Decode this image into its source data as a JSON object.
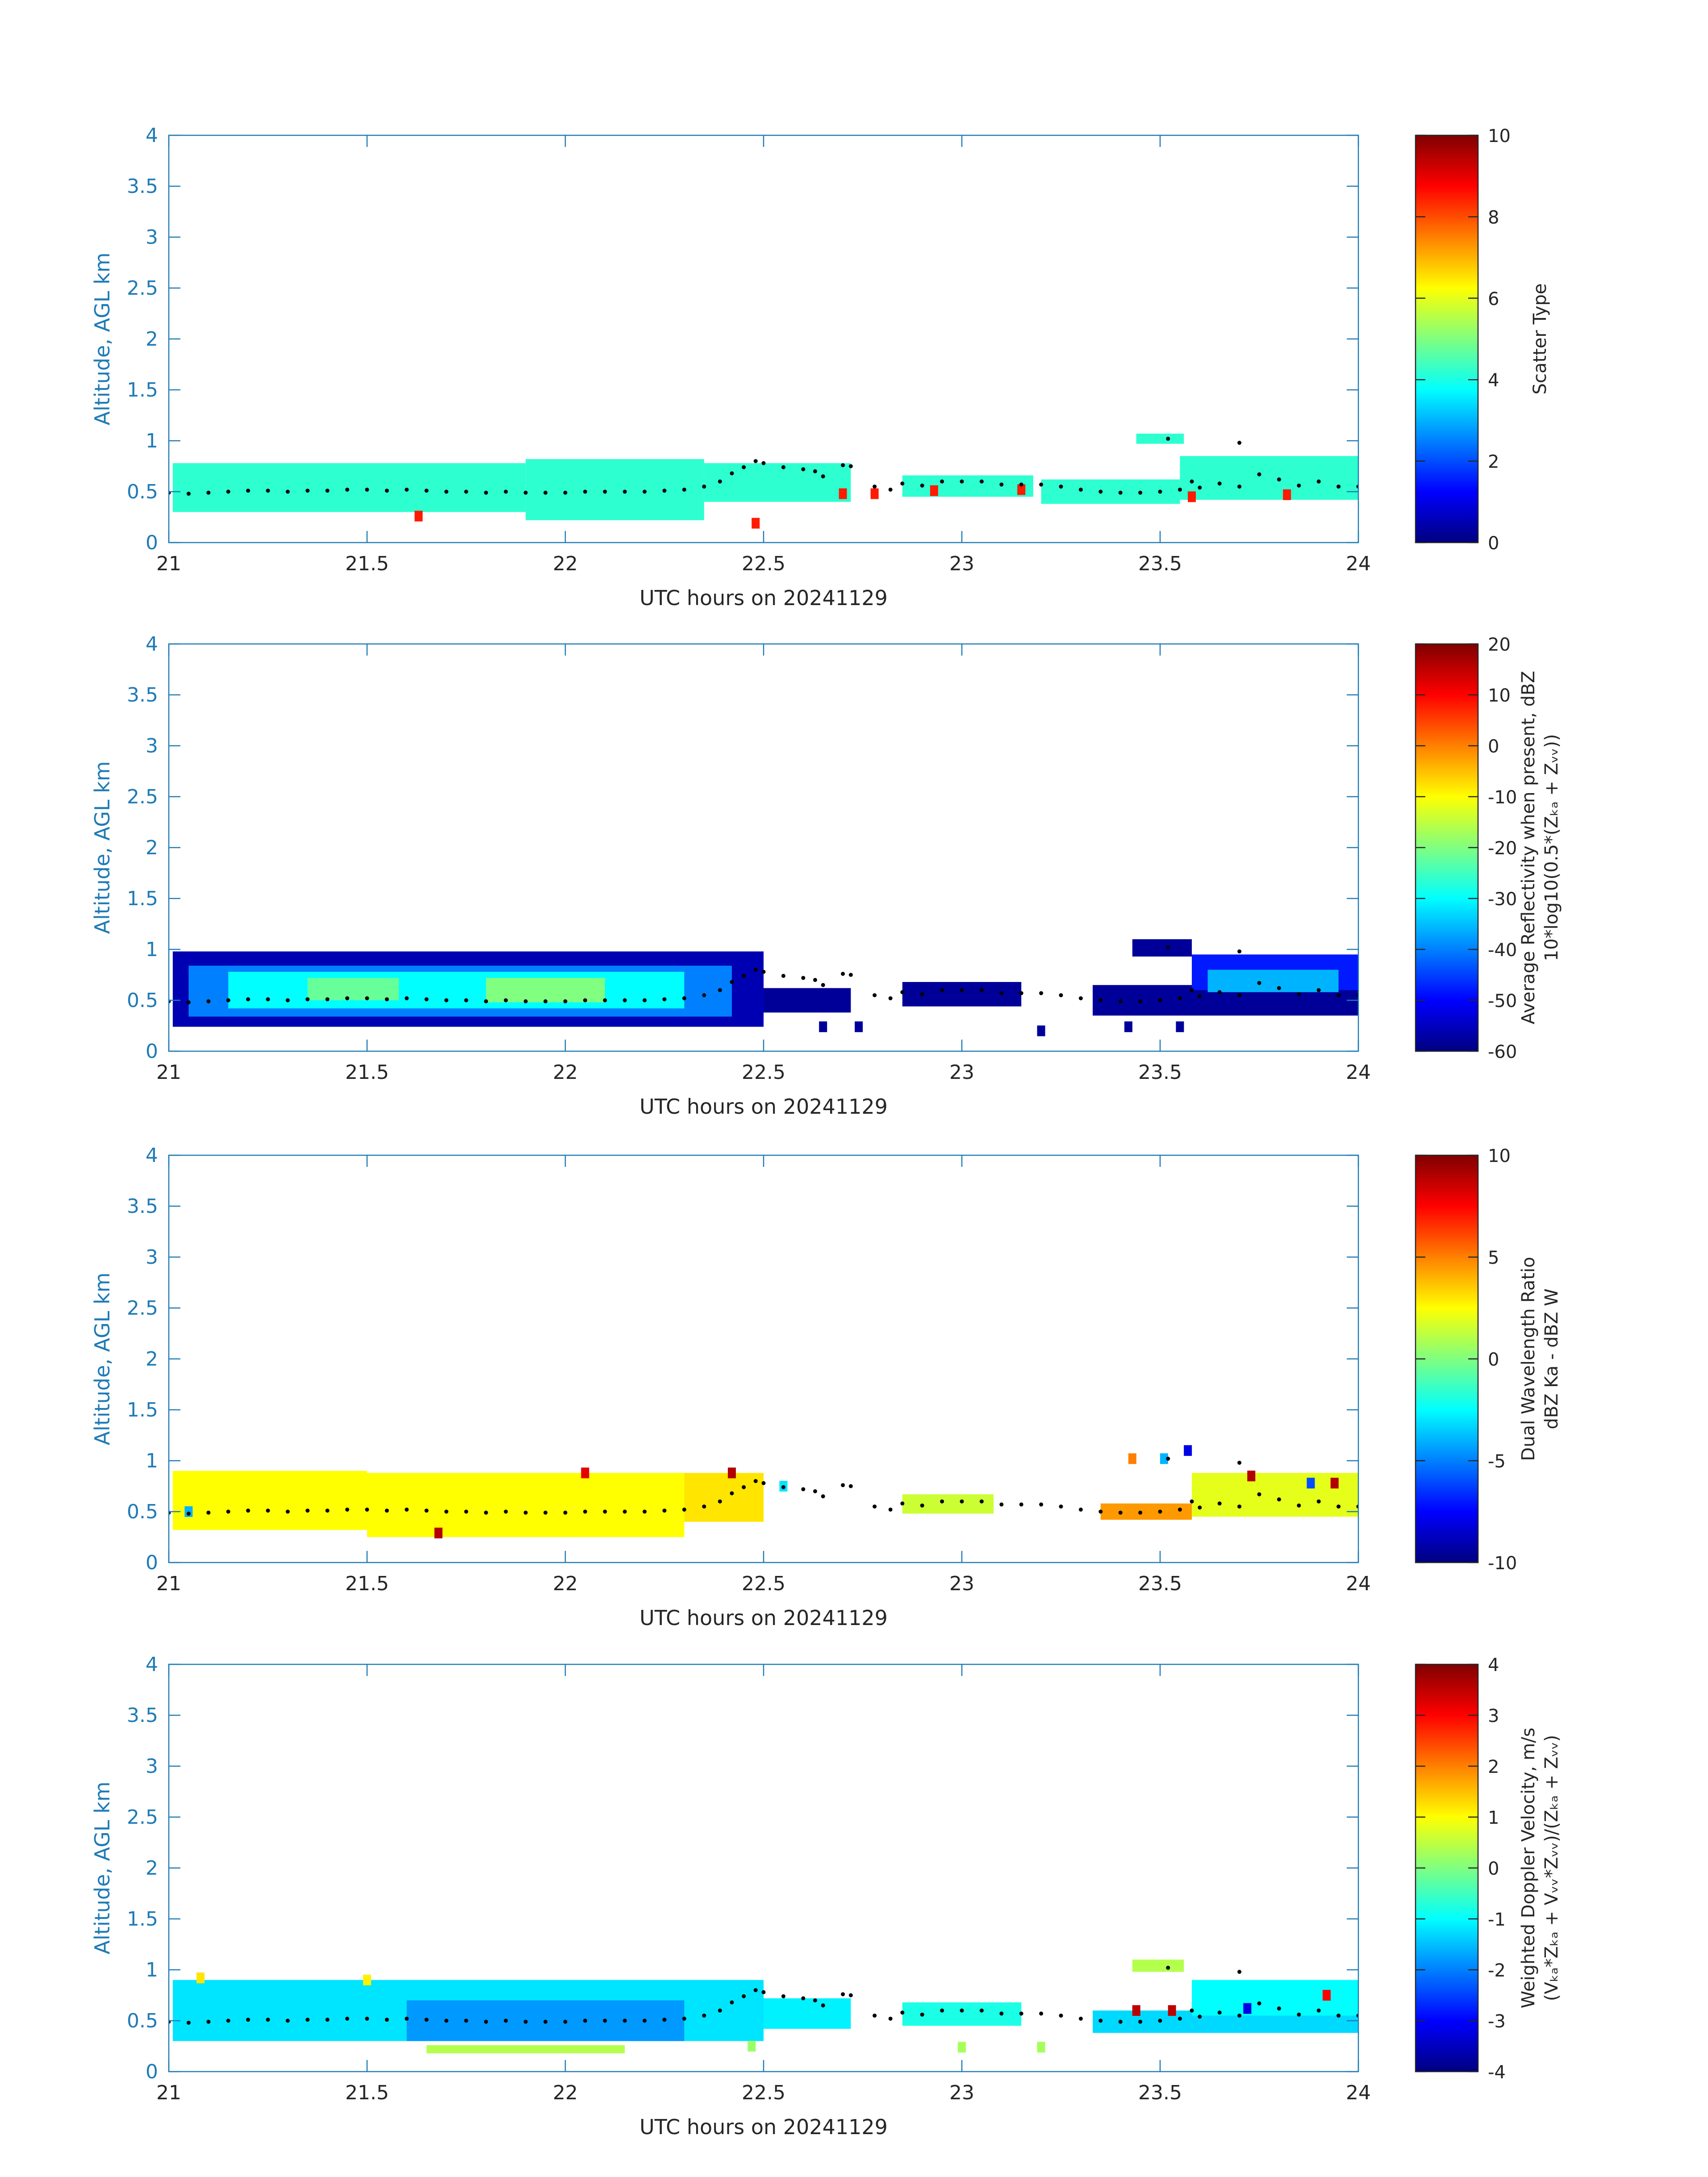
{
  "colors": {
    "axis": "#1f7bb6",
    "text": "#262626",
    "dots": "#000000"
  },
  "chart_data": [
    {
      "type": "heatmap",
      "panel": "scatter-type",
      "xlabel": "UTC hours on 20241129",
      "ylabel": "Altitude, AGL km",
      "xlim": [
        21,
        24
      ],
      "ylim": [
        0,
        4
      ],
      "xticks": [
        21,
        21.5,
        22,
        22.5,
        23,
        23.5,
        24
      ],
      "yticks": [
        0,
        0.5,
        1,
        1.5,
        2,
        2.5,
        3,
        3.5,
        4
      ],
      "colorbar": {
        "label": [
          "Scatter Type"
        ],
        "clim": [
          0,
          10
        ],
        "ticks": [
          0,
          2,
          4,
          6,
          8,
          10
        ]
      },
      "regions": [
        {
          "x": [
            21.01,
            21.9
          ],
          "y": [
            0.3,
            0.78
          ],
          "value": 4.2
        },
        {
          "x": [
            21.9,
            22.35
          ],
          "y": [
            0.22,
            0.82
          ],
          "value": 4.2
        },
        {
          "x": [
            22.35,
            22.72
          ],
          "y": [
            0.4,
            0.78
          ],
          "value": 4.2
        },
        {
          "x": [
            22.85,
            23.18
          ],
          "y": [
            0.45,
            0.66
          ],
          "value": 4.2
        },
        {
          "x": [
            23.2,
            23.55
          ],
          "y": [
            0.38,
            0.62
          ],
          "value": 4.2
        },
        {
          "x": [
            23.55,
            24.0
          ],
          "y": [
            0.42,
            0.85
          ],
          "value": 4.2
        },
        {
          "x": [
            23.44,
            23.56
          ],
          "y": [
            0.97,
            1.07
          ],
          "value": 4.2
        }
      ],
      "spots": [
        {
          "x": 21.63,
          "y": 0.26,
          "value": 8.5
        },
        {
          "x": 22.48,
          "y": 0.19,
          "value": 8.5
        },
        {
          "x": 22.7,
          "y": 0.48,
          "value": 8.5
        },
        {
          "x": 22.78,
          "y": 0.48,
          "value": 8.5
        },
        {
          "x": 22.93,
          "y": 0.51,
          "value": 8.5
        },
        {
          "x": 23.15,
          "y": 0.52,
          "value": 8.5
        },
        {
          "x": 23.82,
          "y": 0.47,
          "value": 8.5
        },
        {
          "x": 23.58,
          "y": 0.45,
          "value": 8.5
        }
      ]
    },
    {
      "type": "heatmap",
      "panel": "reflectivity",
      "xlabel": "UTC hours on 20241129",
      "ylabel": "Altitude, AGL km",
      "xlim": [
        21,
        24
      ],
      "ylim": [
        0,
        4
      ],
      "xticks": [
        21,
        21.5,
        22,
        22.5,
        23,
        23.5,
        24
      ],
      "yticks": [
        0,
        0.5,
        1,
        1.5,
        2,
        2.5,
        3,
        3.5,
        4
      ],
      "colorbar": {
        "label": [
          "Average Reflectivity when present, dBZ",
          "10*log10(0.5*(Zₖₐ + Zᵥᵥ))"
        ],
        "clim": [
          -60,
          20
        ],
        "ticks": [
          -60,
          -50,
          -40,
          -30,
          -20,
          -10,
          0,
          10,
          20
        ]
      },
      "regions": [
        {
          "x": [
            21.01,
            22.5
          ],
          "y": [
            0.24,
            0.98
          ],
          "value": -56
        },
        {
          "x": [
            21.05,
            22.42
          ],
          "y": [
            0.34,
            0.84
          ],
          "value": -40
        },
        {
          "x": [
            21.15,
            22.3
          ],
          "y": [
            0.42,
            0.78
          ],
          "value": -30
        },
        {
          "x": [
            21.35,
            21.58
          ],
          "y": [
            0.5,
            0.72
          ],
          "value": -22
        },
        {
          "x": [
            21.8,
            22.1
          ],
          "y": [
            0.48,
            0.72
          ],
          "value": -20
        },
        {
          "x": [
            22.5,
            22.72
          ],
          "y": [
            0.38,
            0.62
          ],
          "value": -58
        },
        {
          "x": [
            22.85,
            23.15
          ],
          "y": [
            0.44,
            0.68
          ],
          "value": -58
        },
        {
          "x": [
            23.33,
            24.0
          ],
          "y": [
            0.35,
            0.65
          ],
          "value": -58
        },
        {
          "x": [
            23.58,
            24.0
          ],
          "y": [
            0.6,
            0.95
          ],
          "value": -48
        },
        {
          "x": [
            23.62,
            23.95
          ],
          "y": [
            0.58,
            0.8
          ],
          "value": -36
        },
        {
          "x": [
            23.43,
            23.58
          ],
          "y": [
            0.93,
            1.1
          ],
          "value": -58
        }
      ],
      "spots": [
        {
          "x": 22.65,
          "y": 0.24,
          "value": -58
        },
        {
          "x": 22.74,
          "y": 0.24,
          "value": -58
        },
        {
          "x": 23.2,
          "y": 0.2,
          "value": -58
        },
        {
          "x": 23.42,
          "y": 0.24,
          "value": -58
        },
        {
          "x": 23.55,
          "y": 0.24,
          "value": -58
        }
      ]
    },
    {
      "type": "heatmap",
      "panel": "dual-wavelength-ratio",
      "xlabel": "UTC hours on 20241129",
      "ylabel": "Altitude, AGL km",
      "xlim": [
        21,
        24
      ],
      "ylim": [
        0,
        4
      ],
      "xticks": [
        21,
        21.5,
        22,
        22.5,
        23,
        23.5,
        24
      ],
      "yticks": [
        0,
        0.5,
        1,
        1.5,
        2,
        2.5,
        3,
        3.5,
        4
      ],
      "colorbar": {
        "label": [
          "Dual Wavelength Ratio",
          "dBZ Ka - dBZ W"
        ],
        "clim": [
          -10,
          10
        ],
        "ticks": [
          -10,
          -5,
          0,
          5,
          10
        ]
      },
      "regions": [
        {
          "x": [
            21.01,
            21.5
          ],
          "y": [
            0.32,
            0.9
          ],
          "value": 2.5
        },
        {
          "x": [
            21.5,
            22.3
          ],
          "y": [
            0.25,
            0.88
          ],
          "value": 2.5
        },
        {
          "x": [
            22.3,
            22.5
          ],
          "y": [
            0.4,
            0.88
          ],
          "value": 3.0
        },
        {
          "x": [
            22.85,
            23.08
          ],
          "y": [
            0.48,
            0.67
          ],
          "value": 1.5
        },
        {
          "x": [
            23.35,
            23.58
          ],
          "y": [
            0.42,
            0.58
          ],
          "value": 4.5
        },
        {
          "x": [
            23.58,
            24.0
          ],
          "y": [
            0.45,
            0.88
          ],
          "value": 2.0
        }
      ],
      "spots": [
        {
          "x": 22.42,
          "y": 0.88,
          "value": 9
        },
        {
          "x": 22.05,
          "y": 0.88,
          "value": 8
        },
        {
          "x": 21.68,
          "y": 0.29,
          "value": 9
        },
        {
          "x": 21.05,
          "y": 0.5,
          "value": -4
        },
        {
          "x": 22.55,
          "y": 0.75,
          "value": -3
        },
        {
          "x": 23.43,
          "y": 1.02,
          "value": 5
        },
        {
          "x": 23.51,
          "y": 1.02,
          "value": -4
        },
        {
          "x": 23.57,
          "y": 1.1,
          "value": -8
        },
        {
          "x": 23.73,
          "y": 0.85,
          "value": 9
        },
        {
          "x": 23.88,
          "y": 0.78,
          "value": -6
        },
        {
          "x": 23.94,
          "y": 0.78,
          "value": 9
        }
      ]
    },
    {
      "type": "heatmap",
      "panel": "doppler-velocity",
      "xlabel": "UTC hours on 20241129",
      "ylabel": "Altitude, AGL km",
      "xlim": [
        21,
        24
      ],
      "ylim": [
        0,
        4
      ],
      "xticks": [
        21,
        21.5,
        22,
        22.5,
        23,
        23.5,
        24
      ],
      "yticks": [
        0,
        0.5,
        1,
        1.5,
        2,
        2.5,
        3,
        3.5,
        4
      ],
      "colorbar": {
        "label": [
          "Weighted Doppler Velocity, m/s",
          "(Vₖₐ*Zₖₐ + Vᵥᵥ*Zᵥᵥ)/(Zₖₐ + Zᵥᵥ)"
        ],
        "clim": [
          -4,
          4
        ],
        "ticks": [
          -4,
          -3,
          -2,
          -1,
          0,
          1,
          2,
          3,
          4
        ]
      },
      "regions": [
        {
          "x": [
            21.01,
            22.5
          ],
          "y": [
            0.3,
            0.9
          ],
          "value": -1.2
        },
        {
          "x": [
            21.6,
            22.3
          ],
          "y": [
            0.3,
            0.7
          ],
          "value": -1.8
        },
        {
          "x": [
            21.65,
            22.15
          ],
          "y": [
            0.18,
            0.26
          ],
          "value": 0.4
        },
        {
          "x": [
            22.5,
            22.72
          ],
          "y": [
            0.42,
            0.72
          ],
          "value": -1.1
        },
        {
          "x": [
            22.85,
            23.15
          ],
          "y": [
            0.45,
            0.68
          ],
          "value": -0.8
        },
        {
          "x": [
            23.33,
            24.0
          ],
          "y": [
            0.38,
            0.6
          ],
          "value": -1.3
        },
        {
          "x": [
            23.58,
            24.0
          ],
          "y": [
            0.55,
            0.9
          ],
          "value": -1.0
        },
        {
          "x": [
            23.43,
            23.56
          ],
          "y": [
            0.98,
            1.1
          ],
          "value": 0.4
        }
      ],
      "spots": [
        {
          "x": 21.08,
          "y": 0.92,
          "value": 1.2
        },
        {
          "x": 21.5,
          "y": 0.9,
          "value": 1.1
        },
        {
          "x": 22.47,
          "y": 0.25,
          "value": 0.2
        },
        {
          "x": 23.0,
          "y": 0.24,
          "value": 0.3
        },
        {
          "x": 23.2,
          "y": 0.24,
          "value": 0.3
        },
        {
          "x": 23.44,
          "y": 0.6,
          "value": 3.5
        },
        {
          "x": 23.53,
          "y": 0.6,
          "value": 3.5
        },
        {
          "x": 23.72,
          "y": 0.62,
          "value": -3.2
        },
        {
          "x": 23.92,
          "y": 0.75,
          "value": 3.0
        }
      ]
    }
  ],
  "echo_top_dots": [
    [
      21.0,
      0.49
    ],
    [
      21.05,
      0.48
    ],
    [
      21.1,
      0.49
    ],
    [
      21.15,
      0.5
    ],
    [
      21.2,
      0.51
    ],
    [
      21.25,
      0.51
    ],
    [
      21.3,
      0.5
    ],
    [
      21.35,
      0.51
    ],
    [
      21.4,
      0.51
    ],
    [
      21.45,
      0.52
    ],
    [
      21.5,
      0.52
    ],
    [
      21.55,
      0.51
    ],
    [
      21.6,
      0.52
    ],
    [
      21.65,
      0.51
    ],
    [
      21.7,
      0.5
    ],
    [
      21.75,
      0.5
    ],
    [
      21.8,
      0.49
    ],
    [
      21.85,
      0.5
    ],
    [
      21.9,
      0.49
    ],
    [
      21.95,
      0.49
    ],
    [
      22.0,
      0.49
    ],
    [
      22.05,
      0.5
    ],
    [
      22.1,
      0.5
    ],
    [
      22.15,
      0.5
    ],
    [
      22.2,
      0.5
    ],
    [
      22.25,
      0.51
    ],
    [
      22.3,
      0.52
    ],
    [
      22.35,
      0.55
    ],
    [
      22.39,
      0.6
    ],
    [
      22.42,
      0.68
    ],
    [
      22.45,
      0.74
    ],
    [
      22.48,
      0.8
    ],
    [
      22.5,
      0.78
    ],
    [
      22.55,
      0.74
    ],
    [
      22.6,
      0.72
    ],
    [
      22.63,
      0.7
    ],
    [
      22.65,
      0.65
    ],
    [
      22.7,
      0.76
    ],
    [
      22.72,
      0.75
    ],
    [
      22.78,
      0.55
    ],
    [
      22.82,
      0.52
    ],
    [
      22.85,
      0.58
    ],
    [
      22.9,
      0.56
    ],
    [
      22.95,
      0.6
    ],
    [
      23.0,
      0.6
    ],
    [
      23.05,
      0.6
    ],
    [
      23.1,
      0.57
    ],
    [
      23.15,
      0.57
    ],
    [
      23.2,
      0.57
    ],
    [
      23.25,
      0.55
    ],
    [
      23.3,
      0.52
    ],
    [
      23.35,
      0.5
    ],
    [
      23.4,
      0.49
    ],
    [
      23.45,
      0.49
    ],
    [
      23.5,
      0.5
    ],
    [
      23.55,
      0.52
    ],
    [
      23.58,
      0.6
    ],
    [
      23.6,
      0.54
    ],
    [
      23.65,
      0.58
    ],
    [
      23.7,
      0.55
    ],
    [
      23.75,
      0.67
    ],
    [
      23.8,
      0.62
    ],
    [
      23.85,
      0.56
    ],
    [
      23.9,
      0.6
    ],
    [
      23.95,
      0.55
    ],
    [
      24.0,
      0.55
    ],
    [
      23.7,
      0.98
    ],
    [
      23.52,
      1.02
    ]
  ]
}
